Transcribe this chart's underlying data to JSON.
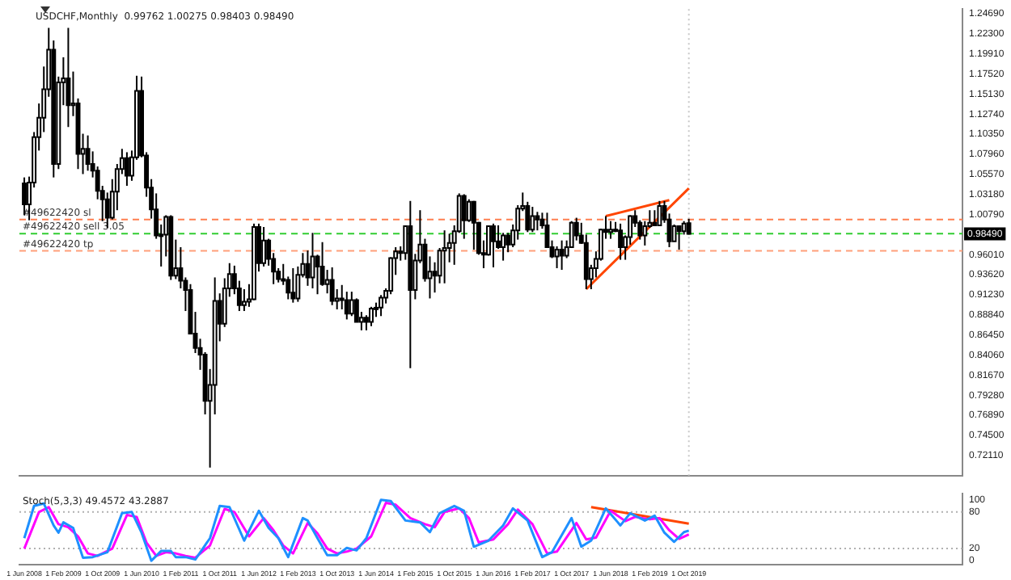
{
  "chart_data": [
    {
      "type": "candlestick",
      "title": "USDCHF,Monthly  0.99762 1.00275 0.98403 0.98490",
      "color": "#000000",
      "xlim": [
        "2008-05",
        "2024-06"
      ],
      "ylim": [
        0.6971,
        1.2524
      ],
      "yticks": [
        {
          "value": 0.7211,
          "label": "0.72110"
        },
        {
          "value": 0.745,
          "label": "0.74500"
        },
        {
          "value": 0.7689,
          "label": "0.76890"
        },
        {
          "value": 0.7928,
          "label": "0.79280"
        },
        {
          "value": 0.8167,
          "label": "0.81670"
        },
        {
          "value": 0.8406,
          "label": "0.84060"
        },
        {
          "value": 0.8645,
          "label": "0.86450"
        },
        {
          "value": 0.8884,
          "label": "0.88840"
        },
        {
          "value": 0.9123,
          "label": "0.91230"
        },
        {
          "value": 0.9362,
          "label": "0.93620"
        },
        {
          "value": 0.9601,
          "label": "0.96010"
        },
        {
          "value": 1.0079,
          "label": "1.00790"
        },
        {
          "value": 1.0318,
          "label": "1.03180"
        },
        {
          "value": 1.0557,
          "label": "1.05570"
        },
        {
          "value": 1.0796,
          "label": "1.07960"
        },
        {
          "value": 1.1035,
          "label": "1.10350"
        },
        {
          "value": 1.1274,
          "label": "1.12740"
        },
        {
          "value": 1.1513,
          "label": "1.15130"
        },
        {
          "value": 1.1752,
          "label": "1.17520"
        },
        {
          "value": 1.1991,
          "label": "1.19910"
        },
        {
          "value": 1.223,
          "label": "1.22300"
        },
        {
          "value": 1.2469,
          "label": "1.24690"
        }
      ],
      "colors": [
        "#000000",
        "#ffffff",
        "#ffffff",
        "#ffffff",
        "#ffffff",
        "#ffffff",
        "#000000",
        "#ffffff",
        "#ffffff",
        "#000000",
        "#ffffff",
        "#000000",
        "#ffffff",
        "#000000",
        "#000000",
        "#000000",
        "#000000",
        "#000000",
        "#ffffff",
        "#ffffff",
        "#ffffff",
        "#000000",
        "#ffffff",
        "#ffffff",
        "#000000",
        "#000000",
        "#000000",
        "#000000",
        "#ffffff",
        "#ffffff",
        "#000000",
        "#ffffff",
        "#000000",
        "#000000",
        "#000000",
        "#000000",
        "#000000",
        "#000000",
        "#ffffff",
        "#ffffff",
        "#000000",
        "#ffffff",
        "#ffffff",
        "#000000",
        "#000000",
        "#ffffff",
        "#ffffff",
        "#ffffff",
        "#000000",
        "#ffffff",
        "#000000",
        "#000000",
        "#000000",
        "#000000",
        "#000000",
        "#000000",
        "#ffffff",
        "#ffffff",
        "#000000",
        "#ffffff",
        "#000000",
        "#000000",
        "#ffffff",
        "#000000",
        "#ffffff",
        "#000000",
        "#000000",
        "#ffffff",
        "#000000",
        "#ffffff",
        "#000000",
        "#ffffff",
        "#ffffff",
        "#ffffff",
        "#ffffff",
        "#ffffff",
        "#ffffff",
        "#000000",
        "#ffffff",
        "#000000",
        "#ffffff",
        "#ffffff",
        "#000000",
        "#ffffff",
        "#000000",
        "#ffffff",
        "#ffffff",
        "#ffffff",
        "#ffffff",
        "#ffffff",
        "#000000",
        "#ffffff",
        "#000000",
        "#000000",
        "#000000",
        "#ffffff",
        "#000000",
        "#000000",
        "#ffffff",
        "#000000",
        "#ffffff",
        "#ffffff",
        "#ffffff",
        "#000000",
        "#ffffff",
        "#000000",
        "#000000",
        "#000000",
        "#000000",
        "#ffffff",
        "#000000",
        "#ffffff",
        "#ffffff",
        "#000000",
        "#000000",
        "#000000",
        "#ffffff",
        "#ffffff",
        "#ffffff",
        "#000000",
        "#ffffff",
        "#000000",
        "#000000",
        "#ffffff",
        "#ffffff",
        "#000000",
        "#000000",
        "#ffffff",
        "#ffffff",
        "#000000",
        "#ffffff",
        "#000000",
        "#000000",
        "#ffffff",
        "#000000",
        "#ffffff",
        "#000000"
      ],
      "x": [
        "2008-06",
        "2008-07",
        "2008-08",
        "2008-09",
        "2008-10",
        "2008-11",
        "2008-12",
        "2009-01",
        "2009-02",
        "2009-03",
        "2009-04",
        "2009-05",
        "2009-06",
        "2009-07",
        "2009-08",
        "2009-09",
        "2009-10",
        "2009-11",
        "2009-12",
        "2010-01",
        "2010-02",
        "2010-03",
        "2010-04",
        "2010-05",
        "2010-06",
        "2010-07",
        "2010-08",
        "2010-09",
        "2010-10",
        "2010-11",
        "2010-12",
        "2011-01",
        "2011-02",
        "2011-03",
        "2011-04",
        "2011-05",
        "2011-06",
        "2011-07",
        "2011-08",
        "2011-09",
        "2011-10",
        "2011-11",
        "2011-12",
        "2012-01",
        "2012-02",
        "2012-03",
        "2012-04",
        "2012-05",
        "2012-06",
        "2012-07",
        "2012-08",
        "2012-09",
        "2012-10",
        "2012-11",
        "2012-12",
        "2013-01",
        "2013-02",
        "2013-03",
        "2013-04",
        "2013-05",
        "2013-06",
        "2013-07",
        "2013-08",
        "2013-09",
        "2013-10",
        "2013-11",
        "2013-12",
        "2014-01",
        "2014-02",
        "2014-03",
        "2014-04",
        "2014-05",
        "2014-06",
        "2014-07",
        "2014-08",
        "2014-09",
        "2014-10",
        "2014-11",
        "2014-12",
        "2015-01",
        "2015-02",
        "2015-03",
        "2015-04",
        "2015-05",
        "2015-06",
        "2015-07",
        "2015-08",
        "2015-09",
        "2015-10",
        "2015-11",
        "2015-12",
        "2016-01",
        "2016-02",
        "2016-03",
        "2016-04",
        "2016-05",
        "2016-06",
        "2016-07",
        "2016-08",
        "2016-09",
        "2016-10",
        "2016-11",
        "2016-12",
        "2017-01",
        "2017-02",
        "2017-03",
        "2017-04",
        "2017-05",
        "2017-06",
        "2017-07",
        "2017-08",
        "2017-09",
        "2017-10",
        "2017-11",
        "2017-12",
        "2018-01",
        "2018-02",
        "2018-03",
        "2018-04",
        "2018-05",
        "2018-06",
        "2018-07",
        "2018-08",
        "2018-09",
        "2018-10",
        "2018-11",
        "2018-12",
        "2019-01",
        "2019-02",
        "2019-03",
        "2019-04",
        "2019-05",
        "2019-06",
        "2019-07",
        "2019-08",
        "2019-09",
        "2019-10"
      ],
      "ohlc": [
        [
          1.045,
          1.052,
          1.007,
          1.02
        ],
        [
          1.02,
          1.053,
          1.001,
          1.046
        ],
        [
          1.046,
          1.106,
          1.04,
          1.1
        ],
        [
          1.1,
          1.14,
          1.084,
          1.123
        ],
        [
          1.123,
          1.184,
          1.106,
          1.157
        ],
        [
          1.157,
          1.23,
          1.148,
          1.204
        ],
        [
          1.204,
          1.215,
          1.052,
          1.068
        ],
        [
          1.068,
          1.172,
          1.062,
          1.165
        ],
        [
          1.165,
          1.195,
          1.138,
          1.17
        ],
        [
          1.17,
          1.23,
          1.112,
          1.138
        ],
        [
          1.138,
          1.178,
          1.125,
          1.14
        ],
        [
          1.14,
          1.146,
          1.062,
          1.08
        ],
        [
          1.08,
          1.104,
          1.056,
          1.086
        ],
        [
          1.086,
          1.102,
          1.06,
          1.068
        ],
        [
          1.068,
          1.083,
          1.052,
          1.06
        ],
        [
          1.06,
          1.065,
          1.026,
          1.036
        ],
        [
          1.036,
          1.042,
          1.0,
          1.026
        ],
        [
          1.026,
          1.034,
          0.992,
          1.004
        ],
        [
          1.004,
          1.05,
          1.002,
          1.035
        ],
        [
          1.035,
          1.068,
          1.013,
          1.062
        ],
        [
          1.062,
          1.086,
          1.056,
          1.075
        ],
        [
          1.075,
          1.082,
          1.042,
          1.054
        ],
        [
          1.054,
          1.084,
          1.048,
          1.076
        ],
        [
          1.076,
          1.173,
          1.073,
          1.155
        ],
        [
          1.155,
          1.172,
          1.076,
          1.078
        ],
        [
          1.078,
          1.082,
          1.029,
          1.04
        ],
        [
          1.04,
          1.05,
          1.003,
          1.014
        ],
        [
          1.014,
          1.033,
          0.979,
          0.983
        ],
        [
          0.983,
          0.996,
          0.946,
          0.984
        ],
        [
          0.984,
          1.007,
          0.958,
          1.005
        ],
        [
          1.005,
          1.007,
          0.93,
          0.935
        ],
        [
          0.935,
          0.978,
          0.931,
          0.944
        ],
        [
          0.944,
          0.969,
          0.92,
          0.929
        ],
        [
          0.929,
          0.933,
          0.893,
          0.918
        ],
        [
          0.918,
          0.925,
          0.866,
          0.866
        ],
        [
          0.866,
          0.892,
          0.843,
          0.849
        ],
        [
          0.849,
          0.86,
          0.823,
          0.841
        ],
        [
          0.841,
          0.844,
          0.77,
          0.786
        ],
        [
          0.786,
          0.824,
          0.7067,
          0.805
        ],
        [
          0.805,
          0.933,
          0.77,
          0.905
        ],
        [
          0.905,
          0.914,
          0.857,
          0.878
        ],
        [
          0.878,
          0.932,
          0.874,
          0.92
        ],
        [
          0.92,
          0.95,
          0.91,
          0.937
        ],
        [
          0.937,
          0.947,
          0.913,
          0.92
        ],
        [
          0.92,
          0.929,
          0.893,
          0.9
        ],
        [
          0.9,
          0.919,
          0.893,
          0.904
        ],
        [
          0.904,
          0.925,
          0.898,
          0.907
        ],
        [
          0.907,
          0.997,
          0.906,
          0.993
        ],
        [
          0.993,
          0.997,
          0.94,
          0.95
        ],
        [
          0.95,
          0.993,
          0.946,
          0.977
        ],
        [
          0.977,
          0.979,
          0.947,
          0.955
        ],
        [
          0.955,
          0.962,
          0.925,
          0.94
        ],
        [
          0.94,
          0.944,
          0.927,
          0.931
        ],
        [
          0.931,
          0.949,
          0.924,
          0.93
        ],
        [
          0.93,
          0.934,
          0.907,
          0.915
        ],
        [
          0.915,
          0.944,
          0.903,
          0.908
        ],
        [
          0.908,
          0.946,
          0.904,
          0.936
        ],
        [
          0.936,
          0.962,
          0.933,
          0.949
        ],
        [
          0.949,
          0.965,
          0.923,
          0.933
        ],
        [
          0.933,
          0.986,
          0.92,
          0.958
        ],
        [
          0.958,
          0.96,
          0.913,
          0.946
        ],
        [
          0.946,
          0.975,
          0.923,
          0.925
        ],
        [
          0.925,
          0.942,
          0.914,
          0.93
        ],
        [
          0.93,
          0.945,
          0.9,
          0.905
        ],
        [
          0.905,
          0.919,
          0.895,
          0.908
        ],
        [
          0.908,
          0.924,
          0.895,
          0.906
        ],
        [
          0.906,
          0.916,
          0.883,
          0.89
        ],
        [
          0.89,
          0.916,
          0.887,
          0.906
        ],
        [
          0.906,
          0.908,
          0.88,
          0.88
        ],
        [
          0.88,
          0.892,
          0.87,
          0.885
        ],
        [
          0.885,
          0.888,
          0.87,
          0.88
        ],
        [
          0.88,
          0.898,
          0.875,
          0.896
        ],
        [
          0.896,
          0.903,
          0.886,
          0.897
        ],
        [
          0.897,
          0.912,
          0.887,
          0.909
        ],
        [
          0.909,
          0.92,
          0.902,
          0.917
        ],
        [
          0.917,
          0.957,
          0.913,
          0.956
        ],
        [
          0.956,
          0.969,
          0.936,
          0.964
        ],
        [
          0.964,
          0.97,
          0.953,
          0.962
        ],
        [
          0.962,
          0.995,
          0.954,
          0.994
        ],
        [
          0.994,
          1.024,
          0.825,
          0.918
        ],
        [
          0.918,
          0.961,
          0.907,
          0.953
        ],
        [
          0.953,
          1.013,
          0.95,
          0.972
        ],
        [
          0.972,
          0.979,
          0.928,
          0.932
        ],
        [
          0.932,
          0.958,
          0.908,
          0.94
        ],
        [
          0.94,
          0.951,
          0.915,
          0.935
        ],
        [
          0.935,
          0.968,
          0.926,
          0.965
        ],
        [
          0.965,
          0.989,
          0.926,
          0.968
        ],
        [
          0.968,
          0.985,
          0.951,
          0.974
        ],
        [
          0.974,
          0.995,
          0.948,
          0.988
        ],
        [
          0.988,
          1.033,
          0.986,
          1.03
        ],
        [
          1.03,
          1.032,
          0.979,
          1.001
        ],
        [
          1.001,
          1.026,
          0.999,
          1.023
        ],
        [
          1.023,
          1.024,
          0.966,
          0.998
        ],
        [
          0.998,
          0.999,
          0.96,
          0.962
        ],
        [
          0.962,
          0.977,
          0.944,
          0.96
        ],
        [
          0.96,
          0.995,
          0.959,
          0.994
        ],
        [
          0.994,
          0.997,
          0.945,
          0.976
        ],
        [
          0.976,
          0.995,
          0.967,
          0.969
        ],
        [
          0.969,
          0.986,
          0.953,
          0.983
        ],
        [
          0.983,
          0.986,
          0.963,
          0.972
        ],
        [
          0.972,
          0.996,
          0.969,
          0.989
        ],
        [
          0.989,
          1.019,
          0.978,
          1.015
        ],
        [
          1.015,
          1.034,
          1.012,
          1.018
        ],
        [
          1.018,
          1.023,
          0.987,
          0.99
        ],
        [
          0.99,
          1.017,
          0.987,
          1.006
        ],
        [
          1.006,
          1.011,
          0.989,
          1.002
        ],
        [
          1.002,
          1.01,
          0.991,
          0.995
        ],
        [
          0.995,
          1.01,
          0.969,
          0.969
        ],
        [
          0.969,
          0.977,
          0.956,
          0.958
        ],
        [
          0.958,
          0.97,
          0.944,
          0.966
        ],
        [
          0.966,
          0.977,
          0.942,
          0.959
        ],
        [
          0.959,
          0.977,
          0.956,
          0.969
        ],
        [
          0.969,
          1.0,
          0.968,
          0.998
        ],
        [
          0.998,
          1.004,
          0.977,
          0.983
        ],
        [
          0.983,
          0.998,
          0.973,
          0.974
        ],
        [
          0.974,
          0.984,
          0.919,
          0.931
        ],
        [
          0.931,
          0.948,
          0.919,
          0.944
        ],
        [
          0.944,
          0.964,
          0.933,
          0.955
        ],
        [
          0.955,
          0.991,
          0.953,
          0.99
        ],
        [
          0.99,
          1.006,
          0.979,
          0.987
        ],
        [
          0.987,
          1.0,
          0.979,
          0.99
        ],
        [
          0.99,
          0.999,
          0.987,
          0.989
        ],
        [
          0.989,
          0.997,
          0.954,
          0.969
        ],
        [
          0.969,
          0.983,
          0.954,
          0.981
        ],
        [
          0.981,
          1.007,
          0.972,
          1.006
        ],
        [
          1.006,
          1.013,
          0.993,
          0.998
        ],
        [
          0.998,
          1.001,
          0.978,
          0.983
        ],
        [
          0.983,
          1.0,
          0.971,
          0.994
        ],
        [
          0.994,
          1.013,
          0.992,
          0.998
        ],
        [
          0.998,
          1.013,
          0.994,
          0.995
        ],
        [
          0.995,
          1.024,
          0.994,
          1.018
        ],
        [
          1.018,
          1.024,
          0.998,
          1.002
        ],
        [
          1.002,
          1.009,
          0.969,
          0.976
        ],
        [
          0.976,
          0.996,
          0.976,
          0.994
        ],
        [
          0.994,
          0.995,
          0.966,
          0.988
        ],
        [
          0.988,
          1.0,
          0.984,
          0.997
        ],
        [
          0.99762,
          1.00275,
          0.98403,
          0.9849
        ]
      ],
      "series": [
        {
          "type": "line",
          "color": "#ff4500",
          "x": [
            "2018-01",
            "2019-10"
          ],
          "values": [
            0.919,
            1.039
          ]
        },
        {
          "type": "line",
          "color": "#ff4500",
          "x": [
            "2018-05",
            "2019-06"
          ],
          "values": [
            1.006,
            1.025
          ]
        }
      ],
      "ref_lines": [
        {
          "axis": "y",
          "value": 1.002,
          "label": "#49622420 sl",
          "color": "#ff7f50",
          "line_style": "dashed"
        },
        {
          "axis": "y",
          "value": 0.9852,
          "label": "#49622420 sell 3.05",
          "color": "#32cd32",
          "line_style": "dashed"
        },
        {
          "axis": "y",
          "value": 0.9646,
          "label": "#49622420 tp",
          "color": "#ffa07a",
          "line_style": "dashed"
        },
        {
          "axis": "x",
          "value": "2019-10",
          "color": "#c8c8c8",
          "line_style": "dotted"
        }
      ],
      "annotations": [
        "0.98490"
      ]
    },
    {
      "type": "line",
      "title": "Stoch(5,3,3) 49.4572 43.2887",
      "xlim": [
        "2008-05",
        "2024-06"
      ],
      "ylim": [
        -7,
        110
      ],
      "yticks": [
        0,
        20,
        80,
        100
      ],
      "xticks": [
        {
          "value": "2008-06",
          "label": "1 Jun 2008"
        },
        {
          "value": "2009-02",
          "label": "1 Feb 2009"
        },
        {
          "value": "2009-10",
          "label": "1 Oct 2009"
        },
        {
          "value": "2010-06",
          "label": "1 Jun 2010"
        },
        {
          "value": "2011-02",
          "label": "1 Feb 2011"
        },
        {
          "value": "2011-10",
          "label": "1 Oct 2011"
        },
        {
          "value": "2012-06",
          "label": "1 Jun 2012"
        },
        {
          "value": "2013-02",
          "label": "1 Feb 2013"
        },
        {
          "value": "2013-10",
          "label": "1 Oct 2013"
        },
        {
          "value": "2014-06",
          "label": "1 Jun 2014"
        },
        {
          "value": "2015-02",
          "label": "1 Feb 2015"
        },
        {
          "value": "2015-10",
          "label": "1 Oct 2015"
        },
        {
          "value": "2016-06",
          "label": "1 Jun 2016"
        },
        {
          "value": "2017-02",
          "label": "1 Feb 2017"
        },
        {
          "value": "2017-10",
          "label": "1 Oct 2017"
        },
        {
          "value": "2018-06",
          "label": "1 Jun 2018"
        },
        {
          "value": "2019-02",
          "label": "1 Feb 2019"
        },
        {
          "value": "2019-10",
          "label": "1 Oct 2019"
        }
      ],
      "series": [
        {
          "color": "#1e90ff",
          "x": [
            "2008-06",
            "2008-08",
            "2008-10",
            "2008-12",
            "2009-01",
            "2009-02",
            "2009-04",
            "2009-06",
            "2009-08",
            "2009-11",
            "2010-02",
            "2010-04",
            "2010-06",
            "2010-08",
            "2010-10",
            "2010-12",
            "2011-01",
            "2011-03",
            "2011-05",
            "2011-08",
            "2011-10",
            "2011-12",
            "2012-03",
            "2012-06",
            "2012-08",
            "2012-10",
            "2012-12",
            "2013-03",
            "2013-04",
            "2013-06",
            "2013-08",
            "2013-10",
            "2013-12",
            "2014-02",
            "2014-04",
            "2014-07",
            "2014-09",
            "2014-12",
            "2015-03",
            "2015-05",
            "2015-07",
            "2015-10",
            "2015-12",
            "2016-02",
            "2016-05",
            "2016-08",
            "2016-10",
            "2017-01",
            "2017-04",
            "2017-06",
            "2017-10",
            "2017-12",
            "2018-02",
            "2018-05",
            "2018-08",
            "2018-10",
            "2019-01",
            "2019-03",
            "2019-05",
            "2019-07",
            "2019-09",
            "2019-10"
          ],
          "values": [
            37,
            90,
            94,
            58,
            46,
            63,
            54,
            5,
            6,
            14,
            78,
            80,
            46,
            0,
            16,
            16,
            6,
            6,
            2,
            37,
            90,
            88,
            33,
            82,
            54,
            37,
            6,
            70,
            66,
            37,
            9,
            9,
            21,
            17,
            37,
            100,
            98,
            66,
            63,
            47,
            78,
            90,
            82,
            23,
            33,
            58,
            86,
            66,
            6,
            14,
            70,
            23,
            33,
            86,
            58,
            78,
            66,
            74,
            46,
            31,
            47,
            49.4572
          ]
        },
        {
          "color": "#ff00ff",
          "x": [
            "2008-06",
            "2008-09",
            "2008-11",
            "2009-01",
            "2009-03",
            "2009-05",
            "2009-07",
            "2009-09",
            "2009-12",
            "2010-03",
            "2010-05",
            "2010-07",
            "2010-09",
            "2010-11",
            "2011-01",
            "2011-03",
            "2011-05",
            "2011-08",
            "2011-11",
            "2012-01",
            "2012-04",
            "2012-07",
            "2012-09",
            "2012-11",
            "2013-01",
            "2013-04",
            "2013-06",
            "2013-08",
            "2013-10",
            "2013-12",
            "2014-02",
            "2014-05",
            "2014-08",
            "2014-10",
            "2015-01",
            "2015-04",
            "2015-06",
            "2015-08",
            "2015-11",
            "2016-01",
            "2016-03",
            "2016-06",
            "2016-09",
            "2016-11",
            "2017-02",
            "2017-05",
            "2017-07",
            "2017-11",
            "2018-01",
            "2018-03",
            "2018-06",
            "2018-09",
            "2018-11",
            "2019-02",
            "2019-04",
            "2019-06",
            "2019-08",
            "2019-10"
          ],
          "values": [
            20,
            80,
            88,
            60,
            55,
            40,
            12,
            8,
            20,
            75,
            72,
            30,
            8,
            14,
            12,
            8,
            5,
            25,
            85,
            80,
            40,
            70,
            50,
            25,
            12,
            62,
            45,
            20,
            12,
            15,
            20,
            40,
            95,
            92,
            70,
            60,
            55,
            80,
            86,
            70,
            30,
            35,
            60,
            84,
            60,
            12,
            15,
            62,
            35,
            38,
            82,
            65,
            72,
            68,
            70,
            50,
            36,
            43.2887
          ]
        },
        {
          "type": "line",
          "color": "#ff4500",
          "x": [
            "2018-02",
            "2019-10"
          ],
          "values": [
            88,
            61
          ]
        }
      ],
      "ref_lines": [
        {
          "axis": "y",
          "value": 80,
          "color": "#b0b0b0",
          "line_style": "dotted"
        },
        {
          "axis": "y",
          "value": 20,
          "color": "#b0b0b0",
          "line_style": "dotted"
        }
      ]
    }
  ]
}
